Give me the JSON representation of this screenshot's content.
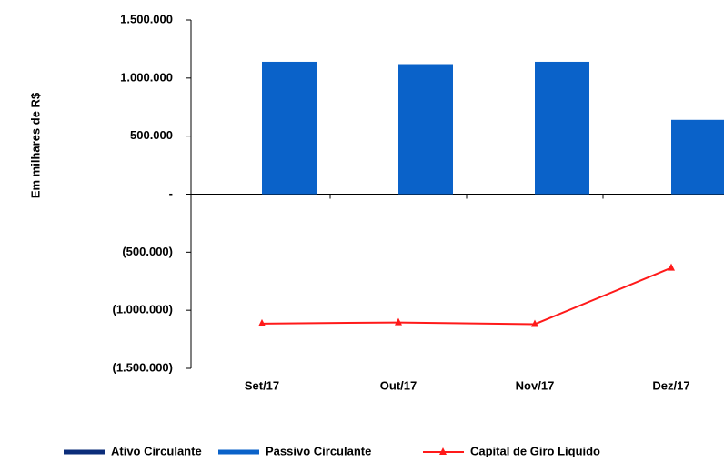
{
  "chart_data": {
    "type": "bar",
    "y_label": "Em milhares de R$",
    "categories": [
      "Set/17",
      "Out/17",
      "Nov/17",
      "Dez/17"
    ],
    "series": [
      {
        "name": "Ativo Circulante",
        "color": "#0b2d7a",
        "type": "bar",
        "values": [
          0,
          0,
          0,
          0
        ]
      },
      {
        "name": "Passivo Circulante",
        "color": "#0a62c9",
        "type": "bar",
        "values": [
          1140000,
          1120000,
          1140000,
          640000
        ]
      },
      {
        "name": "Capital de Giro Líquido",
        "color": "#ff1a1a",
        "type": "line",
        "values": [
          -1115000,
          -1105000,
          -1120000,
          -635000
        ]
      }
    ],
    "ylim": [
      -1500000,
      1500000
    ],
    "yticks": [
      {
        "value": -1500000,
        "label": "(1.500.000)"
      },
      {
        "value": -1000000,
        "label": "(1.000.000)"
      },
      {
        "value": -500000,
        "label": "(500.000)"
      },
      {
        "value": 0,
        "label": "-"
      },
      {
        "value": 500000,
        "label": "500.000"
      },
      {
        "value": 1000000,
        "label": "1.000.000"
      },
      {
        "value": 1500000,
        "label": "1.500.000"
      }
    ],
    "legend": "bottom"
  }
}
